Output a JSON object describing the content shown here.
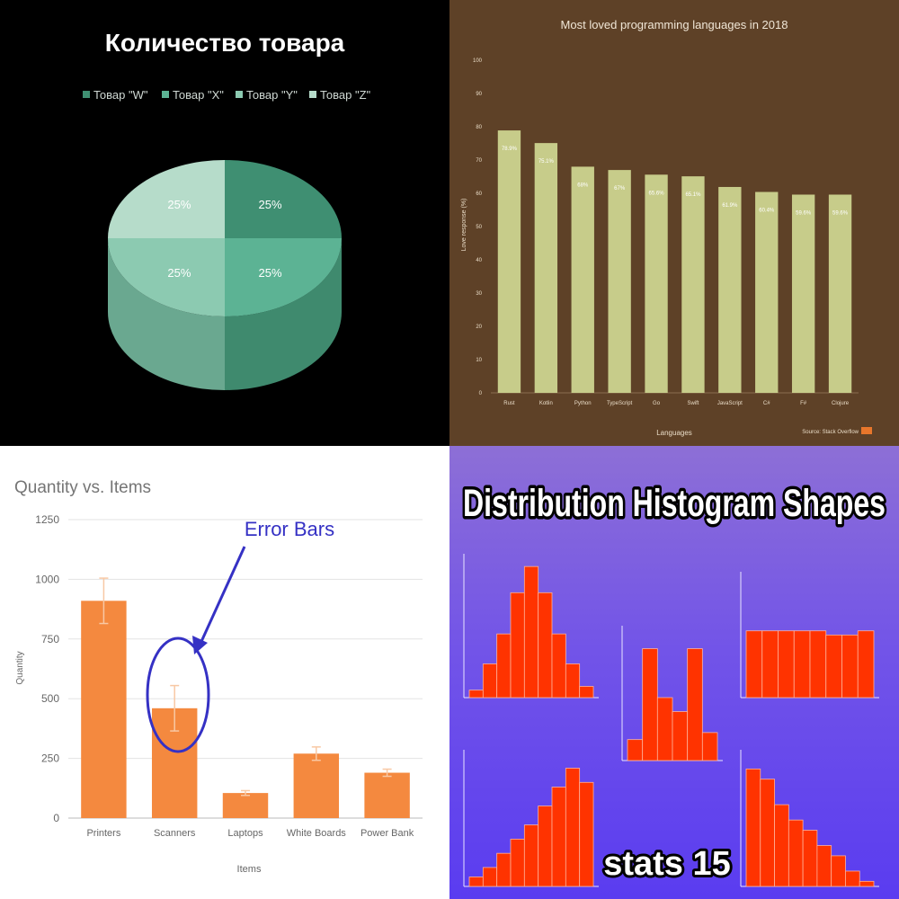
{
  "chart_data": [
    {
      "id": "pie",
      "type": "pie",
      "title": "Количество товара",
      "categories": [
        "Товар \"W\"",
        "Товар \"X\"",
        "Товар \"Y\"",
        "Товар \"Z\""
      ],
      "values": [
        25,
        25,
        25,
        25
      ],
      "data_labels": [
        "25%",
        "25%",
        "25%",
        "25%"
      ],
      "legend_position": "top",
      "colors": [
        "#3f8f72",
        "#5cb394",
        "#8ccab1",
        "#b6dcca"
      ],
      "three_d": true
    },
    {
      "id": "langs",
      "type": "bar",
      "title": "Most loved programming languages in 2018",
      "xlabel": "Languages",
      "ylabel": "Love response (%)",
      "categories": [
        "Rust",
        "Kotlin",
        "Python",
        "TypeScript",
        "Go",
        "Swift",
        "JavaScript",
        "C#",
        "F#",
        "Clojure"
      ],
      "values": [
        78.9,
        75.1,
        68,
        67,
        65.6,
        65.1,
        61.9,
        60.4,
        59.6,
        59.6
      ],
      "data_labels": [
        "78.9%",
        "75.1%",
        "68%",
        "67%",
        "65.6%",
        "65.1%",
        "61.9%",
        "60.4%",
        "59.6%",
        "59.6%"
      ],
      "ylim": [
        0,
        100
      ],
      "yticks": [
        0,
        10,
        20,
        30,
        40,
        50,
        60,
        70,
        80,
        90,
        100
      ],
      "source": "Source: Stack Overflow",
      "bar_color": "#c7cc8a",
      "text_color": "#e9dcc7"
    },
    {
      "id": "error",
      "type": "bar",
      "title": "Quantity vs. Items",
      "xlabel": "Items",
      "ylabel": "Quantity",
      "categories": [
        "Printers",
        "Scanners",
        "Laptops",
        "White Boards",
        "Power Bank"
      ],
      "values": [
        910,
        460,
        105,
        270,
        190
      ],
      "errors": [
        95,
        95,
        10,
        28,
        15
      ],
      "ylim": [
        0,
        1250
      ],
      "yticks": [
        "0",
        "250",
        "500",
        "750",
        "1000",
        "1250"
      ],
      "annotation": "Error Bars",
      "bar_color": "#f4893f",
      "annotation_color": "#3531c4"
    },
    {
      "id": "hist",
      "type": "bar",
      "title": "Distribution Histogram Shapes",
      "footer": "stats 15",
      "bar_color": "#ff3300",
      "histograms": [
        {
          "name": "symmetric",
          "values": [
            2,
            9,
            17,
            28,
            35,
            28,
            17,
            9,
            3
          ]
        },
        {
          "name": "bimodal",
          "values": [
            3,
            16,
            9,
            7,
            16,
            4
          ]
        },
        {
          "name": "uniform",
          "values": [
            16,
            16,
            16,
            16,
            16,
            15,
            15,
            16
          ]
        },
        {
          "name": "left-skewed",
          "values": [
            2,
            4,
            7,
            10,
            13,
            17,
            21,
            25,
            22
          ]
        },
        {
          "name": "right-skewed",
          "values": [
            23,
            21,
            16,
            13,
            11,
            8,
            6,
            3,
            1
          ]
        }
      ]
    }
  ]
}
